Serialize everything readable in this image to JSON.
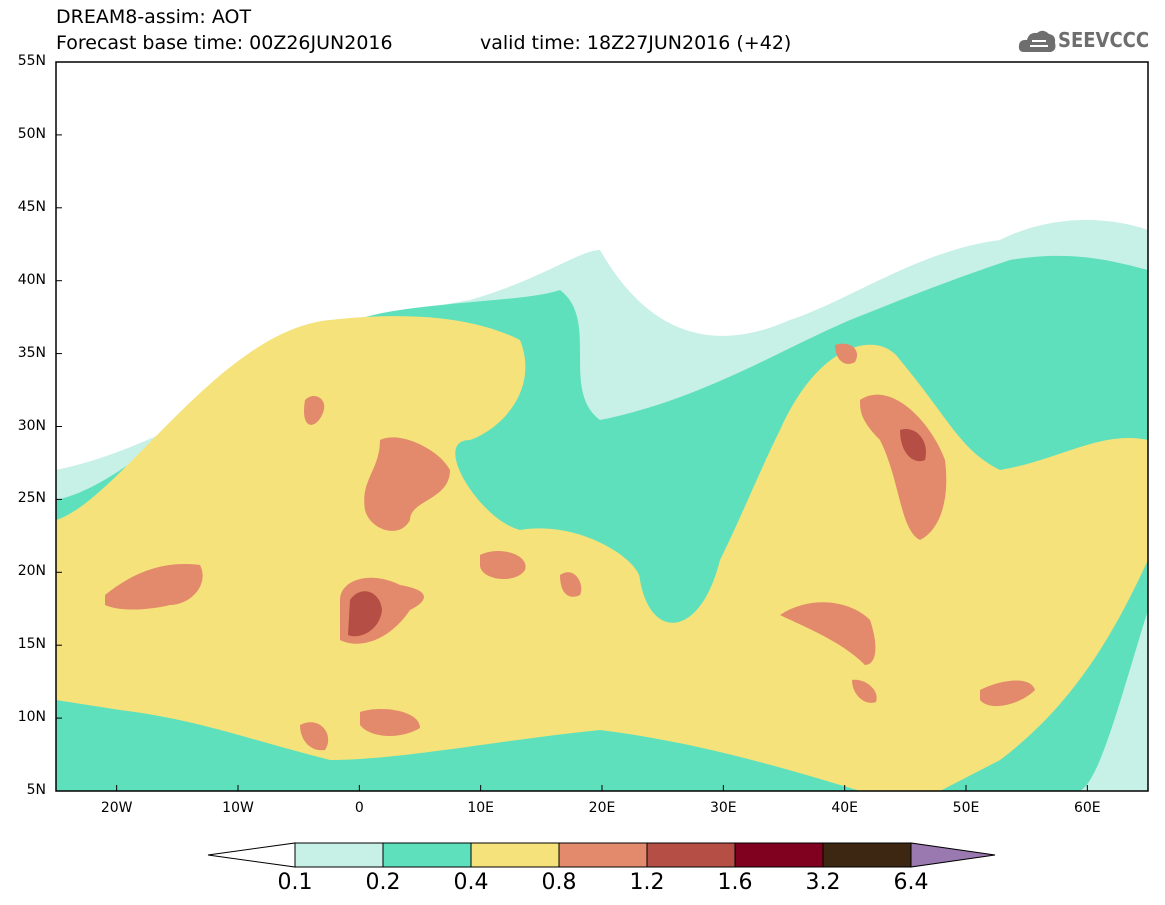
{
  "header": {
    "line1": "DREAM8-assim: AOT",
    "line2": "Forecast base time: 00Z26JUN2016",
    "line2b": "valid time: 18Z27JUN2016 (+42)",
    "logo_text": "SEEVCCC",
    "logo_icon": "cloud-icon"
  },
  "map": {
    "lat_labels": [
      "55N",
      "50N",
      "45N",
      "40N",
      "35N",
      "30N",
      "25N",
      "20N",
      "15N",
      "10N",
      "5N"
    ],
    "lon_labels": [
      "20W",
      "10W",
      "0",
      "10E",
      "20E",
      "30E",
      "40E",
      "50E",
      "60E"
    ],
    "lon_range": [
      -25,
      65
    ],
    "lat_range": [
      5,
      55
    ],
    "colors": {
      "c1": "#c7f0e6",
      "c2": "#5fe0bd",
      "c3": "#f5e27a",
      "c4": "#e38a6c",
      "c5": "#b54e44",
      "c6": "#800020",
      "c7": "#3d2612",
      "c8": "#9a78b0"
    }
  },
  "colorbar": {
    "labels": [
      "0.1",
      "0.2",
      "0.4",
      "0.8",
      "1.2",
      "1.6",
      "3.2",
      "6.4"
    ],
    "colors": [
      "#c7f0e6",
      "#5fe0bd",
      "#f5e27a",
      "#e38a6c",
      "#b54e44",
      "#800020",
      "#3d2612"
    ],
    "under_color": "#ffffff",
    "over_color": "#9a78b0"
  }
}
